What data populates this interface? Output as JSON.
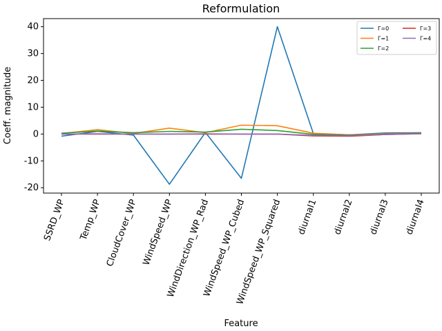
{
  "chart_data": {
    "type": "line",
    "title": "Reformulation",
    "xlabel": "Feature",
    "ylabel": "Coeff. magnitude",
    "ylim": [
      -22,
      43
    ],
    "yticks": [
      -20,
      -10,
      0,
      10,
      20,
      30,
      40
    ],
    "categories": [
      "SSRD_WP",
      "Temp_WP",
      "CloudCover_WP",
      "WindSpeed_WP",
      "WindDirection_WP_Rad",
      "WindSpeed_WP_Cubed",
      "WindSpeed_WP_Squared",
      "diurnal1",
      "diurnal2",
      "diurnal3",
      "diurnal4"
    ],
    "legend_position": "top-right",
    "grid": false,
    "series": [
      {
        "name": "Γ=0",
        "color": "#1f77b4",
        "values": [
          -0.8,
          1.0,
          -0.4,
          -18.7,
          0.6,
          -16.5,
          40.0,
          0.2,
          -0.3,
          0.4,
          0.5
        ]
      },
      {
        "name": "Γ=1",
        "color": "#ff7f0e",
        "values": [
          0.2,
          1.6,
          0.2,
          2.2,
          0.5,
          3.3,
          3.1,
          0.3,
          -0.3,
          0.1,
          0.3
        ]
      },
      {
        "name": "Γ=2",
        "color": "#2ca02c",
        "values": [
          0.3,
          1.1,
          0.5,
          1.0,
          0.7,
          1.8,
          1.3,
          -0.1,
          -0.4,
          -0.1,
          0.2
        ]
      },
      {
        "name": "Γ=3",
        "color": "#d62728",
        "values": [
          0.0,
          0.0,
          0.0,
          0.0,
          0.0,
          0.0,
          0.0,
          -0.7,
          -0.8,
          -0.2,
          0.1
        ]
      },
      {
        "name": "Γ=4",
        "color": "#9467bd",
        "values": [
          0.0,
          0.1,
          0.0,
          0.0,
          0.1,
          0.0,
          0.0,
          -0.5,
          -0.6,
          -0.2,
          0.1
        ]
      }
    ]
  }
}
